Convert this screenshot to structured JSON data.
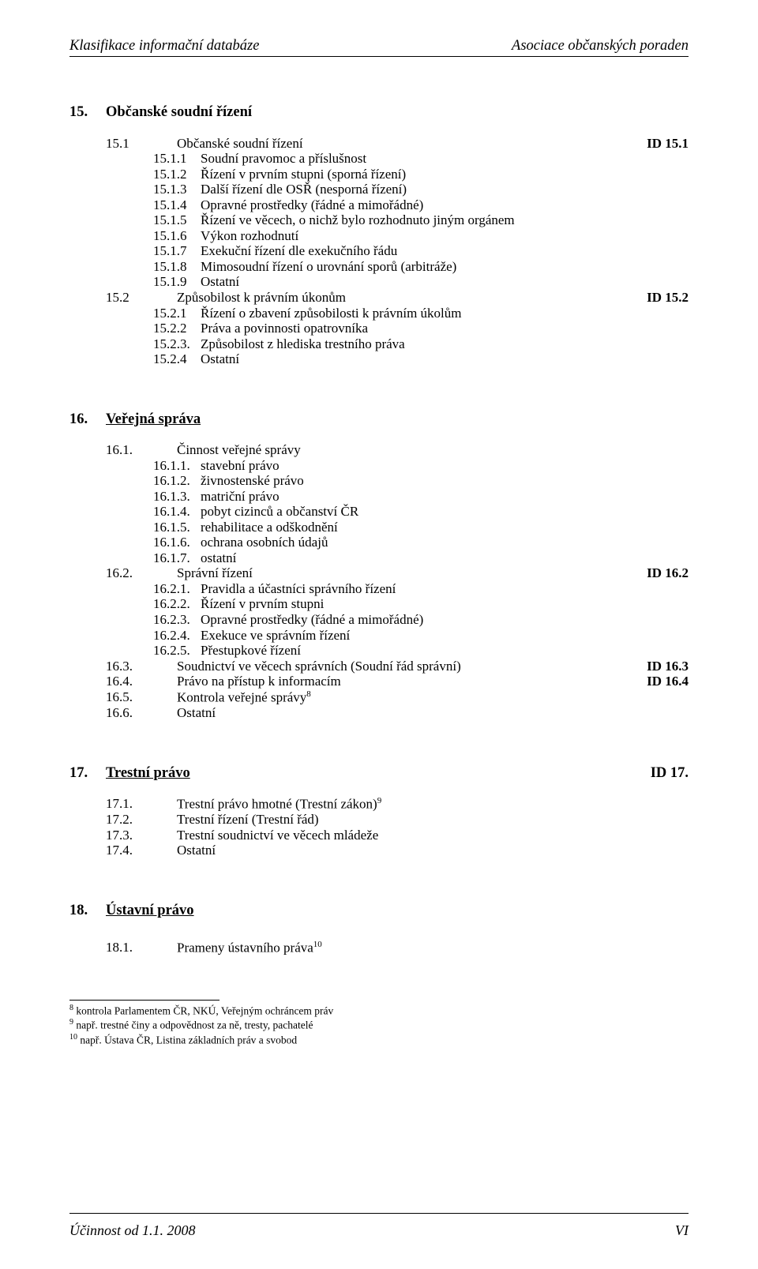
{
  "header": {
    "left": "Klasifikace informační databáze",
    "right": "Asociace občanských poraden"
  },
  "sections": [
    {
      "number": "15.",
      "title": "Občanské soudní řízení",
      "underlined": false,
      "id": "",
      "items": [
        {
          "level": 1,
          "num": "15.1",
          "text": "Občanské soudní řízení",
          "id": "ID 15.1"
        },
        {
          "level": 2,
          "num": "15.1.1",
          "text": "Soudní pravomoc a příslušnost"
        },
        {
          "level": 2,
          "num": "15.1.2",
          "text": "Řízení v prvním stupni (sporná řízení)"
        },
        {
          "level": 2,
          "num": "15.1.3",
          "text": "Další řízení dle OSŘ (nesporná řízení)"
        },
        {
          "level": 2,
          "num": "15.1.4",
          "text": "Opravné prostředky (řádné a mimořádné)"
        },
        {
          "level": 2,
          "num": "15.1.5",
          "text": "Řízení ve věcech, o nichž bylo rozhodnuto jiným orgánem"
        },
        {
          "level": 2,
          "num": "15.1.6",
          "text": "Výkon rozhodnutí"
        },
        {
          "level": 2,
          "num": "15.1.7",
          "text": "Exekuční řízení dle exekučního řádu"
        },
        {
          "level": 2,
          "num": "15.1.8",
          "text": "Mimosoudní řízení o urovnání sporů (arbitráže)"
        },
        {
          "level": 2,
          "num": "15.1.9",
          "text": "Ostatní"
        },
        {
          "level": 1,
          "num": "15.2",
          "text": "Způsobilost k právním úkonům",
          "id": "ID 15.2"
        },
        {
          "level": 2,
          "num": "15.2.1",
          "text": "Řízení o zbavení způsobilosti k právním úkolům"
        },
        {
          "level": 2,
          "num": "15.2.2",
          "text": "Práva a povinnosti opatrovníka"
        },
        {
          "level": 2,
          "num": "15.2.3.",
          "text": " Způsobilost z hlediska trestního práva"
        },
        {
          "level": 2,
          "num": "15.2.4",
          "text": "Ostatní"
        }
      ]
    },
    {
      "number": "16.",
      "title": "Veřejná správa",
      "underlined": true,
      "id": "",
      "items": [
        {
          "level": 1,
          "num": "16.1.",
          "text": "Činnost veřejné správy"
        },
        {
          "level": 2,
          "num": "16.1.1.",
          "text": "stavební právo"
        },
        {
          "level": 2,
          "num": "16.1.2.",
          "text": "živnostenské právo"
        },
        {
          "level": 2,
          "num": "16.1.3.",
          "text": "matriční právo"
        },
        {
          "level": 2,
          "num": "16.1.4.",
          "text": "pobyt cizinců a občanství ČR"
        },
        {
          "level": 2,
          "num": "16.1.5.",
          "text": "rehabilitace a odškodnění"
        },
        {
          "level": 2,
          "num": "16.1.6.",
          "text": "ochrana osobních údajů"
        },
        {
          "level": 2,
          "num": "16.1.7.",
          "text": "ostatní"
        },
        {
          "level": 1,
          "num": "16.2.",
          "text": "Správní řízení",
          "id": "ID 16.2"
        },
        {
          "level": 2,
          "num": "16.2.1.",
          "text": "Pravidla a účastníci správního řízení"
        },
        {
          "level": 2,
          "num": "16.2.2.",
          "text": "Řízení v prvním stupni"
        },
        {
          "level": 2,
          "num": "16.2.3.",
          "text": "Opravné prostředky (řádné a mimořádné)"
        },
        {
          "level": 2,
          "num": "16.2.4.",
          "text": "Exekuce ve správním řízení"
        },
        {
          "level": 2,
          "num": "16.2.5.",
          "text": "Přestupkové řízení"
        },
        {
          "level": 1,
          "num": "16.3.",
          "text": "Soudnictví ve věcech správních (Soudní řád správní)",
          "id": "ID 16.3"
        },
        {
          "level": 1,
          "num": "16.4.",
          "text": "Právo na přístup k informacím",
          "id": "ID 16.4"
        },
        {
          "level": 1,
          "num": "16.5.",
          "text": "Kontrola veřejné správy",
          "sup": "8"
        },
        {
          "level": 1,
          "num": "16.6.",
          "text": "Ostatní"
        }
      ]
    },
    {
      "number": "17.",
      "title": "Trestní právo",
      "underlined": true,
      "id": "ID 17.",
      "items": [
        {
          "level": 1,
          "num": "17.1.",
          "text": "Trestní právo hmotné (Trestní zákon)",
          "sup": "9"
        },
        {
          "level": 1,
          "num": "17.2.",
          "text": "Trestní řízení (Trestní řád)"
        },
        {
          "level": 1,
          "num": "17.3.",
          "text": "Trestní soudnictví ve věcech mládeže"
        },
        {
          "level": 1,
          "num": "17.4.",
          "text": "Ostatní"
        }
      ]
    },
    {
      "number": "18.",
      "title": "Ústavní právo",
      "underlined": true,
      "id": "",
      "items": [
        {
          "level": 0,
          "gap": true
        },
        {
          "level": 1,
          "num": "18.1.",
          "text": "Prameny ústavního práva",
          "sup": "10"
        }
      ]
    }
  ],
  "footnotes": [
    {
      "sup": "8",
      "text": " kontrola Parlamentem ČR, NKÚ, Veřejným ochráncem práv"
    },
    {
      "sup": "9",
      "text": " např. trestné činy a odpovědnost za ně, tresty, pachatelé"
    },
    {
      "sup": "10",
      "text": " např. Ústava ČR, Listina základních práv a svobod"
    }
  ],
  "footer": {
    "left": "Účinnost od 1.1. 2008",
    "right": "VI"
  }
}
